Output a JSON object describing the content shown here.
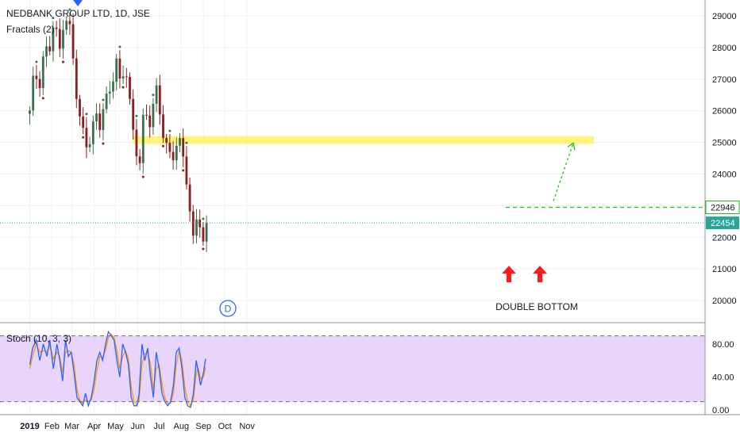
{
  "chart_data": {
    "type": "candlestick",
    "symbol": "NEDBANK GROUP LTD, 1D, JSE",
    "indicator_fractals": "Fractals (2)",
    "indicator_stoch": "Stoch (10, 3, 3)",
    "price_axis": {
      "ticks": [
        "29000",
        "28000",
        "27000",
        "26000",
        "25000",
        "24000",
        "23000",
        "22000",
        "21000",
        "20000"
      ],
      "range": [
        19300,
        29500
      ]
    },
    "stoch_axis": {
      "ticks": [
        "80.00",
        "40.00",
        "0.00"
      ],
      "range": [
        0,
        100
      ],
      "bands": [
        20,
        80
      ]
    },
    "time_axis": [
      "2019",
      "Feb",
      "Mar",
      "Apr",
      "May",
      "Jun",
      "Jul",
      "Aug",
      "Sep",
      "Oct",
      "Nov"
    ],
    "last_price": "22454",
    "resistance_label": "22946",
    "event_marker": "D",
    "annotation": "DOUBLE BOTTOM",
    "support_zone": [
      24950,
      25200
    ],
    "price_path": [
      [
        "2019-01-01",
        25900
      ],
      [
        "2019-01-05",
        26800
      ],
      [
        "2019-01-09",
        27300
      ],
      [
        "2019-01-13",
        26600
      ],
      [
        "2019-01-18",
        27500
      ],
      [
        "2019-01-23",
        28200
      ],
      [
        "2019-01-27",
        27400
      ],
      [
        "2019-02-01",
        28700
      ],
      [
        "2019-02-05",
        28500
      ],
      [
        "2019-02-09",
        28300
      ],
      [
        "2019-02-13",
        27800
      ],
      [
        "2019-02-17",
        28900
      ],
      [
        "2019-02-21",
        29000
      ],
      [
        "2019-02-25",
        28500
      ],
      [
        "2019-02-28",
        28800
      ],
      [
        "2019-03-04",
        27000
      ],
      [
        "2019-03-08",
        26300
      ],
      [
        "2019-03-12",
        25700
      ],
      [
        "2019-03-16",
        25400
      ],
      [
        "2019-03-20",
        25100
      ],
      [
        "2019-03-24",
        24900
      ],
      [
        "2019-03-28",
        25400
      ],
      [
        "2019-04-02",
        25700
      ],
      [
        "2019-04-06",
        25800
      ],
      [
        "2019-04-10",
        25300
      ],
      [
        "2019-04-14",
        26100
      ],
      [
        "2019-04-18",
        26400
      ],
      [
        "2019-04-22",
        26600
      ],
      [
        "2019-04-26",
        27000
      ],
      [
        "2019-04-30",
        27400
      ],
      [
        "2019-05-03",
        27700
      ],
      [
        "2019-05-07",
        26800
      ],
      [
        "2019-05-11",
        27000
      ],
      [
        "2019-05-15",
        27300
      ],
      [
        "2019-05-19",
        26800
      ],
      [
        "2019-05-23",
        25800
      ],
      [
        "2019-05-27",
        25200
      ],
      [
        "2019-05-31",
        24700
      ],
      [
        "2019-06-03",
        24100
      ],
      [
        "2019-06-07",
        25400
      ],
      [
        "2019-06-11",
        26000
      ],
      [
        "2019-06-15",
        25500
      ],
      [
        "2019-06-19",
        25600
      ],
      [
        "2019-06-23",
        26300
      ],
      [
        "2019-06-27",
        26800
      ],
      [
        "2019-07-01",
        26200
      ],
      [
        "2019-07-05",
        25500
      ],
      [
        "2019-07-09",
        25000
      ],
      [
        "2019-07-13",
        24700
      ],
      [
        "2019-07-17",
        24400
      ],
      [
        "2019-07-21",
        24500
      ],
      [
        "2019-07-25",
        25000
      ],
      [
        "2019-07-29",
        25200
      ],
      [
        "2019-08-02",
        24800
      ],
      [
        "2019-08-06",
        24300
      ],
      [
        "2019-08-10",
        23500
      ],
      [
        "2019-08-14",
        22500
      ],
      [
        "2019-08-17",
        21700
      ],
      [
        "2019-08-20",
        22100
      ],
      [
        "2019-08-22",
        22600
      ],
      [
        "2019-08-24",
        22200
      ],
      [
        "2019-08-26",
        22700
      ],
      [
        "2019-08-28",
        22300
      ],
      [
        "2019-08-31",
        21900
      ],
      [
        "2019-09-02",
        21900
      ],
      [
        "2019-09-04",
        22300
      ],
      [
        "2019-09-06",
        22454
      ]
    ],
    "stoch_k": [
      [
        "2019-01-01",
        55
      ],
      [
        "2019-01-05",
        75
      ],
      [
        "2019-01-10",
        85
      ],
      [
        "2019-01-15",
        60
      ],
      [
        "2019-01-20",
        80
      ],
      [
        "2019-01-25",
        65
      ],
      [
        "2019-01-29",
        85
      ],
      [
        "2019-02-03",
        50
      ],
      [
        "2019-02-08",
        80
      ],
      [
        "2019-02-12",
        60
      ],
      [
        "2019-02-16",
        35
      ],
      [
        "2019-02-20",
        85
      ],
      [
        "2019-02-24",
        65
      ],
      [
        "2019-02-28",
        70
      ],
      [
        "2019-03-04",
        45
      ],
      [
        "2019-03-08",
        15
      ],
      [
        "2019-03-12",
        10
      ],
      [
        "2019-03-16",
        5
      ],
      [
        "2019-03-20",
        20
      ],
      [
        "2019-03-24",
        5
      ],
      [
        "2019-03-28",
        15
      ],
      [
        "2019-04-01",
        35
      ],
      [
        "2019-04-05",
        60
      ],
      [
        "2019-04-09",
        70
      ],
      [
        "2019-04-13",
        60
      ],
      [
        "2019-04-17",
        80
      ],
      [
        "2019-04-21",
        95
      ],
      [
        "2019-04-25",
        90
      ],
      [
        "2019-04-29",
        85
      ],
      [
        "2019-05-03",
        60
      ],
      [
        "2019-05-07",
        40
      ],
      [
        "2019-05-11",
        80
      ],
      [
        "2019-05-15",
        70
      ],
      [
        "2019-05-19",
        55
      ],
      [
        "2019-05-23",
        15
      ],
      [
        "2019-05-27",
        5
      ],
      [
        "2019-05-31",
        5
      ],
      [
        "2019-06-03",
        20
      ],
      [
        "2019-06-07",
        80
      ],
      [
        "2019-06-11",
        60
      ],
      [
        "2019-06-15",
        75
      ],
      [
        "2019-06-19",
        40
      ],
      [
        "2019-06-23",
        15
      ],
      [
        "2019-06-27",
        70
      ],
      [
        "2019-07-01",
        50
      ],
      [
        "2019-07-05",
        20
      ],
      [
        "2019-07-09",
        10
      ],
      [
        "2019-07-13",
        5
      ],
      [
        "2019-07-17",
        10
      ],
      [
        "2019-07-21",
        30
      ],
      [
        "2019-07-25",
        70
      ],
      [
        "2019-07-29",
        75
      ],
      [
        "2019-08-02",
        50
      ],
      [
        "2019-08-06",
        15
      ],
      [
        "2019-08-10",
        5
      ],
      [
        "2019-08-14",
        3
      ],
      [
        "2019-08-18",
        20
      ],
      [
        "2019-08-22",
        60
      ],
      [
        "2019-08-25",
        45
      ],
      [
        "2019-08-28",
        30
      ],
      [
        "2019-09-01",
        45
      ],
      [
        "2019-09-04",
        62
      ]
    ],
    "stoch_d": [
      [
        "2019-01-01",
        50
      ],
      [
        "2019-01-05",
        65
      ],
      [
        "2019-01-10",
        80
      ],
      [
        "2019-01-15",
        70
      ],
      [
        "2019-01-20",
        72
      ],
      [
        "2019-01-25",
        70
      ],
      [
        "2019-01-29",
        78
      ],
      [
        "2019-02-03",
        62
      ],
      [
        "2019-02-08",
        70
      ],
      [
        "2019-02-12",
        65
      ],
      [
        "2019-02-16",
        45
      ],
      [
        "2019-02-20",
        70
      ],
      [
        "2019-02-24",
        72
      ],
      [
        "2019-02-28",
        70
      ],
      [
        "2019-03-04",
        55
      ],
      [
        "2019-03-08",
        25
      ],
      [
        "2019-03-12",
        12
      ],
      [
        "2019-03-16",
        8
      ],
      [
        "2019-03-20",
        12
      ],
      [
        "2019-03-24",
        10
      ],
      [
        "2019-03-28",
        12
      ],
      [
        "2019-04-01",
        25
      ],
      [
        "2019-04-05",
        48
      ],
      [
        "2019-04-09",
        65
      ],
      [
        "2019-04-13",
        64
      ],
      [
        "2019-04-17",
        72
      ],
      [
        "2019-04-21",
        88
      ],
      [
        "2019-04-25",
        92
      ],
      [
        "2019-04-29",
        88
      ],
      [
        "2019-05-03",
        72
      ],
      [
        "2019-05-07",
        50
      ],
      [
        "2019-05-11",
        65
      ],
      [
        "2019-05-15",
        72
      ],
      [
        "2019-05-19",
        62
      ],
      [
        "2019-05-23",
        28
      ],
      [
        "2019-05-27",
        10
      ],
      [
        "2019-05-31",
        6
      ],
      [
        "2019-06-03",
        12
      ],
      [
        "2019-06-07",
        55
      ],
      [
        "2019-06-11",
        68
      ],
      [
        "2019-06-15",
        70
      ],
      [
        "2019-06-19",
        55
      ],
      [
        "2019-06-23",
        25
      ],
      [
        "2019-06-27",
        50
      ],
      [
        "2019-07-01",
        55
      ],
      [
        "2019-07-05",
        32
      ],
      [
        "2019-07-09",
        15
      ],
      [
        "2019-07-13",
        8
      ],
      [
        "2019-07-17",
        8
      ],
      [
        "2019-07-21",
        20
      ],
      [
        "2019-07-25",
        55
      ],
      [
        "2019-07-29",
        72
      ],
      [
        "2019-08-02",
        60
      ],
      [
        "2019-08-06",
        28
      ],
      [
        "2019-08-10",
        10
      ],
      [
        "2019-08-14",
        5
      ],
      [
        "2019-08-18",
        12
      ],
      [
        "2019-08-22",
        45
      ],
      [
        "2019-08-25",
        50
      ],
      [
        "2019-08-28",
        38
      ],
      [
        "2019-09-01",
        40
      ],
      [
        "2019-09-04",
        52
      ]
    ],
    "grid": true
  },
  "colors": {
    "up": "#26a69a",
    "down": "#ef5350",
    "candle_up": "#3b6f4f",
    "candle_down": "#8a1f1f",
    "support": "#fff36e",
    "stoch_k": "#2962ff",
    "stoch_d": "#ff9800",
    "stoch_bg": "#e1c6fb",
    "resistance_line": "#16c60c",
    "last_price_line": "#26a69a",
    "arrow": "#ff1a1a",
    "marker": "#2962ff"
  }
}
